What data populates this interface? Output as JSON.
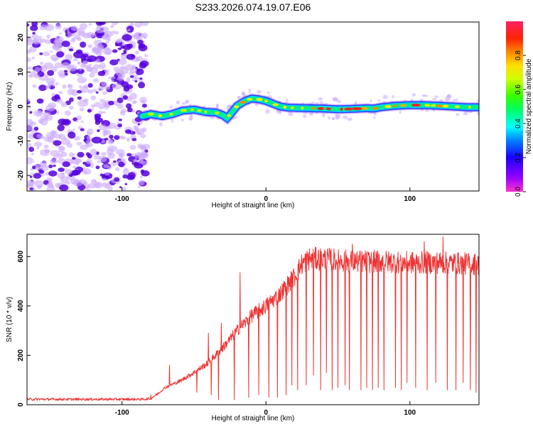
{
  "title": "S233.2026.074.19.07.E06",
  "colors": {
    "snr_line": "#ee3333",
    "axis": "#000000",
    "speckle_strong": "#5500dd",
    "speckle_weak": "#ccaaff"
  },
  "colorbar": {
    "label": "Normalized spectral amplitude",
    "ticks": [
      "0.0",
      "0.2",
      "0.4",
      "0.6",
      "0.8"
    ],
    "tick_values": [
      0.0,
      0.2,
      0.4,
      0.6,
      0.8
    ],
    "range": [
      0,
      1
    ],
    "colormap": "rainbow (magenta-blue-cyan-green-yellow-orange-red-pink)"
  },
  "chart_data": [
    {
      "type": "heatmap",
      "title": "S233.2026.074.19.07.E06",
      "xlabel": "Height of straight line (km)",
      "ylabel": "Frequency (Hz)",
      "xlim": [
        -166,
        148
      ],
      "ylim": [
        -24.5,
        24.5
      ],
      "xticks": [
        -100,
        0,
        100
      ],
      "xtick_labels": [
        "-100",
        "0",
        "100"
      ],
      "yticks": [
        -20,
        -10,
        0,
        10,
        20
      ],
      "ytick_labels": [
        "-20",
        "-10",
        "0",
        "10",
        "20"
      ],
      "noise_region_x": [
        -166,
        -83
      ],
      "ridge": {
        "description": "Doppler ridge of the target",
        "x": [
          -86,
          -80,
          -72,
          -65,
          -58,
          -50,
          -42,
          -35,
          -30,
          -27,
          -24,
          -20,
          -15,
          -10,
          -5,
          0,
          5,
          10,
          15,
          20,
          30,
          40,
          50,
          60,
          70,
          75,
          80,
          90,
          100,
          110,
          120,
          130,
          140,
          148
        ],
        "y": [
          -2.8,
          -2.2,
          -2.8,
          -2.2,
          -1.2,
          -0.9,
          -1.6,
          -1.7,
          -2.5,
          -3.4,
          -1.9,
          0.2,
          1.5,
          2.3,
          2.1,
          1.6,
          0.8,
          0.0,
          -0.3,
          -0.4,
          -0.5,
          -0.6,
          -0.8,
          -0.7,
          -0.5,
          -0.6,
          -0.2,
          0.2,
          0.4,
          0.4,
          0.2,
          0.0,
          -0.2,
          -0.2
        ]
      }
    },
    {
      "type": "line",
      "xlabel": "Height of straight line (km)",
      "ylabel": "SNR (10 * v/v)",
      "xlim": [
        -166,
        148
      ],
      "ylim": [
        0,
        690
      ],
      "xticks": [
        -100,
        0,
        100
      ],
      "xtick_labels": [
        "-100",
        "0",
        "100"
      ],
      "yticks": [
        0,
        200,
        400,
        600
      ],
      "ytick_labels": [
        "0",
        "200",
        "400",
        "600"
      ],
      "series": [
        {
          "name": "SNR",
          "envelope": {
            "x": [
              -166,
              -85,
              -80,
              -75,
              -70,
              -60,
              -50,
              -40,
              -30,
              -20,
              -10,
              0,
              10,
              20,
              25,
              30,
              40,
              60,
              80,
              100,
              120,
              148
            ],
            "y": [
              22,
              22,
              25,
              45,
              70,
              95,
              130,
              170,
              230,
              300,
              360,
              400,
              450,
              520,
              570,
              590,
              590,
              580,
              580,
              575,
              575,
              570
            ]
          },
          "spikes": [
            {
              "x": -80,
              "y": 40
            },
            {
              "x": -67,
              "y": 160
            },
            {
              "x": -40,
              "y": 290
            },
            {
              "x": -31,
              "y": 330
            },
            {
              "x": -18,
              "y": 535
            },
            {
              "x": 60,
              "y": 650
            },
            {
              "x": 110,
              "y": 660
            },
            {
              "x": 123,
              "y": 680
            }
          ],
          "dips": [
            {
              "x": -48,
              "y": 50
            },
            {
              "x": -38,
              "y": 40
            },
            {
              "x": -33,
              "y": 20
            },
            {
              "x": -22,
              "y": 20
            },
            {
              "x": -12,
              "y": 30
            },
            {
              "x": -5,
              "y": 40
            },
            {
              "x": 2,
              "y": 30
            },
            {
              "x": 8,
              "y": 30
            },
            {
              "x": 14,
              "y": 40
            },
            {
              "x": 18,
              "y": 80
            },
            {
              "x": 22,
              "y": 60
            },
            {
              "x": 28,
              "y": 80
            },
            {
              "x": 33,
              "y": 120
            },
            {
              "x": 38,
              "y": 60
            },
            {
              "x": 42,
              "y": 130
            },
            {
              "x": 46,
              "y": 60
            },
            {
              "x": 50,
              "y": 70
            },
            {
              "x": 55,
              "y": 80
            },
            {
              "x": 58,
              "y": 60
            },
            {
              "x": 66,
              "y": 60
            },
            {
              "x": 70,
              "y": 70
            },
            {
              "x": 74,
              "y": 60
            },
            {
              "x": 78,
              "y": 70
            },
            {
              "x": 82,
              "y": 60
            },
            {
              "x": 90,
              "y": 70
            },
            {
              "x": 94,
              "y": 60
            },
            {
              "x": 98,
              "y": 90
            },
            {
              "x": 104,
              "y": 70
            },
            {
              "x": 112,
              "y": 60
            },
            {
              "x": 118,
              "y": 90
            },
            {
              "x": 126,
              "y": 60
            },
            {
              "x": 132,
              "y": 60
            },
            {
              "x": 137,
              "y": 90
            },
            {
              "x": 142,
              "y": 60
            },
            {
              "x": 146,
              "y": 50
            }
          ]
        }
      ]
    }
  ]
}
